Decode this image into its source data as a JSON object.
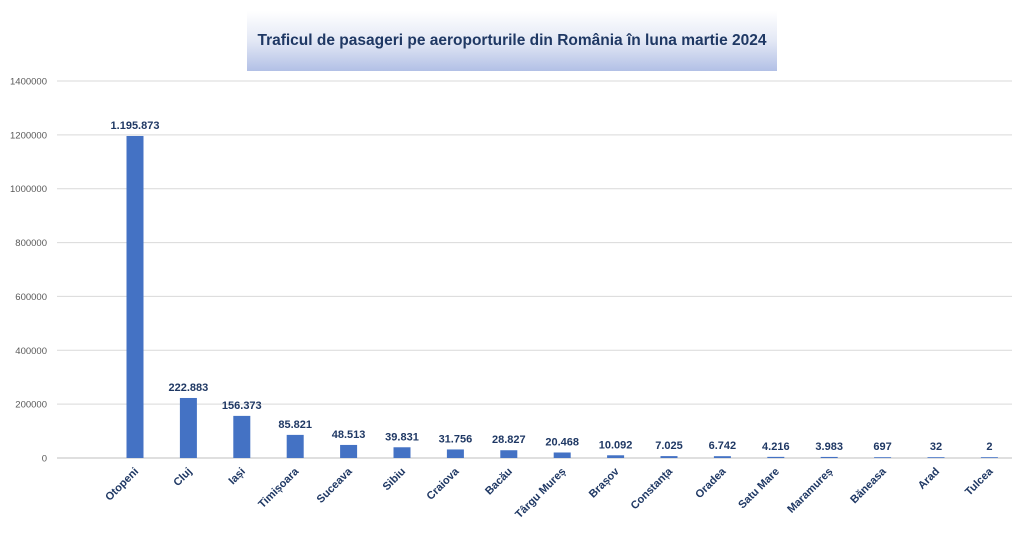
{
  "chart_data": {
    "type": "bar",
    "title": "Traficul de pasageri pe aeroporturile din România în luna martie 2024",
    "categories": [
      "Otopeni",
      "Cluj",
      "Iași",
      "Timișoara",
      "Suceava",
      "Sibiu",
      "Craiova",
      "Bacău",
      "Târgu Mureș",
      "Brașov",
      "Constanța",
      "Oradea",
      "Satu Mare",
      "Maramureș",
      "Băneasa",
      "Arad",
      "Tulcea"
    ],
    "values": [
      1195873,
      222883,
      156373,
      85821,
      48513,
      39831,
      31756,
      28827,
      20468,
      10092,
      7025,
      6742,
      4216,
      3983,
      697,
      32,
      2
    ],
    "data_labels": [
      "1.195.873",
      "222.883",
      "156.373",
      "85.821",
      "48.513",
      "39.831",
      "31.756",
      "28.827",
      "20.468",
      "10.092",
      "7.025",
      "6.742",
      "4.216",
      "3.983",
      "697",
      "32",
      "2"
    ],
    "ylim": [
      0,
      1400000
    ],
    "y_ticks": [
      "0",
      "200000",
      "400000",
      "600000",
      "800000",
      "1000000",
      "1200000",
      "1400000"
    ],
    "grid": true,
    "legend": "none",
    "bar_color": "#4472c4",
    "label_color": "#1f3864"
  }
}
